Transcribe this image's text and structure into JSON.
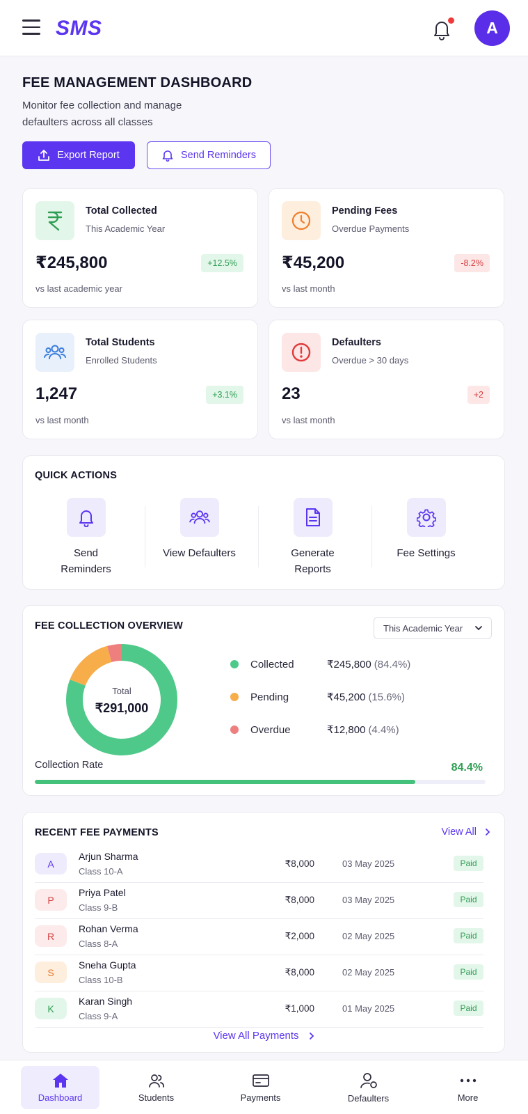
{
  "header": {
    "brand": "SMS",
    "avatar_initial": "A",
    "notification_dot": true
  },
  "page": {
    "title": "FEE MANAGEMENT DASHBOARD",
    "subtitle": "Monitor fee collection and manage defaulters across all classes",
    "export_label": "Export Report",
    "reminders_label": "Send Reminders"
  },
  "stats": [
    {
      "title": "Total Collected",
      "subtitle": "This Academic Year",
      "value": "₹245,800",
      "badge": "+12.5%",
      "trend": "up",
      "footnote": "vs last academic year",
      "icon": "rupee-icon",
      "color": "#2e9e52"
    },
    {
      "title": "Pending Fees",
      "subtitle": "Overdue Payments",
      "value": "₹45,200",
      "badge": "-8.2%",
      "trend": "down",
      "footnote": "vs last month",
      "icon": "clock-icon",
      "color": "#f07d2a"
    },
    {
      "title": "Total Students",
      "subtitle": "Enrolled Students",
      "value": "1,247",
      "badge": "+3.1%",
      "trend": "up",
      "footnote": "vs last month",
      "icon": "users-icon",
      "color": "#3b7ddd"
    },
    {
      "title": "Defaulters",
      "subtitle": "Overdue > 30 days",
      "value": "23",
      "badge": "+2",
      "trend": "down",
      "footnote": "vs last month",
      "icon": "alert-icon",
      "color": "#e03b3b"
    }
  ],
  "quick_actions": {
    "title": "QUICK ACTIONS",
    "items": [
      {
        "label": "Send Reminders",
        "icon": "bell-icon"
      },
      {
        "label": "View Defaulters",
        "icon": "users-icon"
      },
      {
        "label": "Generate Reports",
        "icon": "document-icon"
      },
      {
        "label": "Fee Settings",
        "icon": "gear-icon"
      }
    ]
  },
  "overview": {
    "title": "FEE COLLECTION OVERVIEW",
    "period": "This Academic Year",
    "total_label": "Total",
    "total_value": "₹291,000",
    "legend": [
      {
        "name": "Collected",
        "amount": "₹245,800",
        "pct": "(84.4%)",
        "color": "#4fc98a"
      },
      {
        "name": "Pending",
        "amount": "₹45,200",
        "pct": "(15.6%)",
        "color": "#f6ad4a"
      },
      {
        "name": "Overdue",
        "amount": "₹12,800",
        "pct": "(4.4%)",
        "color": "#ee7f7f"
      }
    ],
    "rate_label": "Collection Rate",
    "rate_value": "84.4%",
    "rate_fraction": 0.844
  },
  "chart_data": {
    "type": "pie",
    "categories": [
      "Collected",
      "Pending",
      "Overdue"
    ],
    "values": [
      245800,
      45200,
      12800
    ],
    "title": "",
    "center_label": "Total",
    "center_value": "₹291,000"
  },
  "payments": {
    "title": "RECENT FEE PAYMENTS",
    "view_all": "View All",
    "view_all_payments": "View All Payments",
    "rows": [
      {
        "initial": "A",
        "name": "Arjun Sharma",
        "class": "Class 10-A",
        "amount": "₹8,000",
        "date": "03 May 2025",
        "status": "Paid",
        "bg": "#eeebfd",
        "fg": "#5b35f0"
      },
      {
        "initial": "P",
        "name": "Priya Patel",
        "class": "Class 9-B",
        "amount": "₹8,000",
        "date": "03 May 2025",
        "status": "Paid",
        "bg": "#fdeaea",
        "fg": "#d64141"
      },
      {
        "initial": "R",
        "name": "Rohan Verma",
        "class": "Class 8-A",
        "amount": "₹2,000",
        "date": "02 May 2025",
        "status": "Paid",
        "bg": "#fdeaea",
        "fg": "#d64141"
      },
      {
        "initial": "S",
        "name": "Sneha Gupta",
        "class": "Class 10-B",
        "amount": "₹8,000",
        "date": "02 May 2025",
        "status": "Paid",
        "bg": "#fdeede",
        "fg": "#e8772a"
      },
      {
        "initial": "K",
        "name": "Karan Singh",
        "class": "Class 9-A",
        "amount": "₹1,000",
        "date": "01 May 2025",
        "status": "Paid",
        "bg": "#e3f6ea",
        "fg": "#2e9e52"
      }
    ]
  },
  "nav": {
    "items": [
      {
        "label": "Dashboard",
        "icon": "home-icon",
        "active": true
      },
      {
        "label": "Students",
        "icon": "users-icon",
        "active": false
      },
      {
        "label": "Payments",
        "icon": "card-icon",
        "active": false
      },
      {
        "label": "Defaulters",
        "icon": "user-alert-icon",
        "active": false
      },
      {
        "label": "More",
        "icon": "more-icon",
        "active": false
      }
    ]
  }
}
